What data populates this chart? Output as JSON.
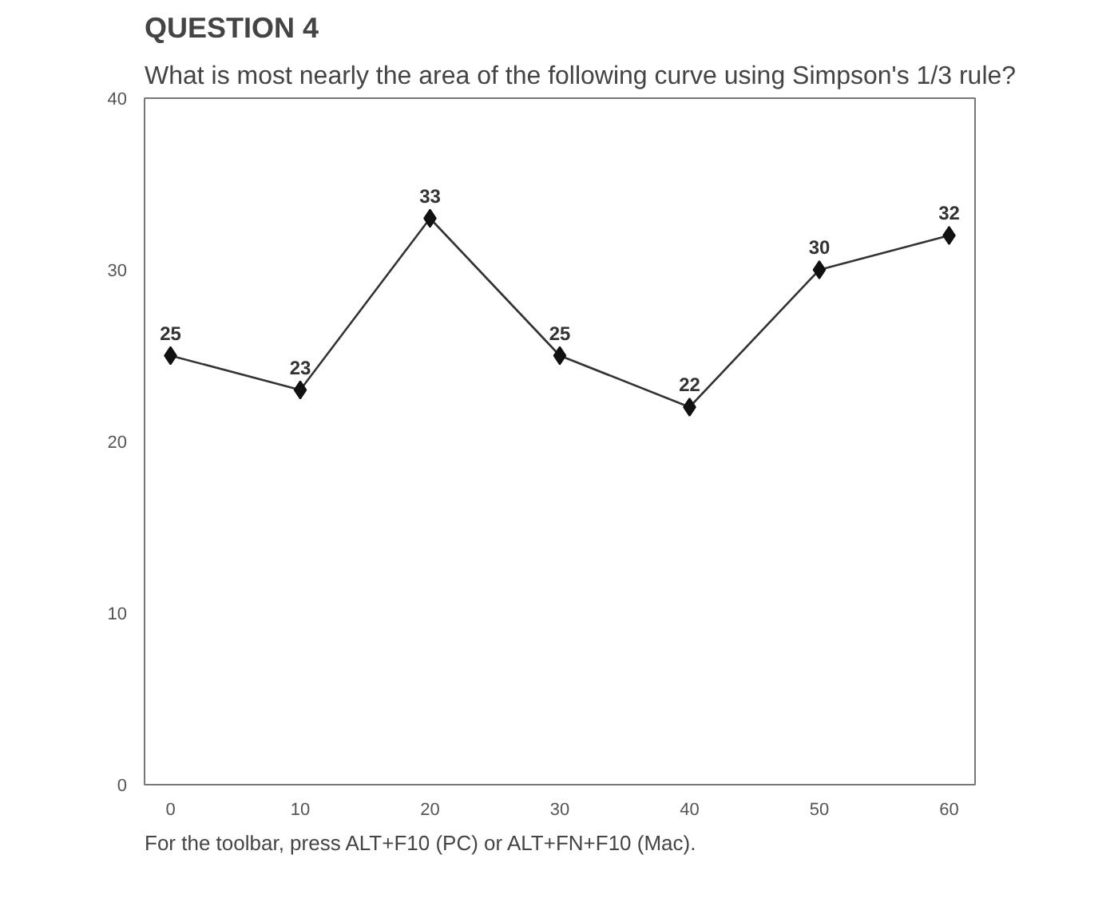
{
  "chart_data": {
    "type": "line",
    "title": "QUESTION 4",
    "subtitle": "What is most nearly the area of the following curve using Simpson's 1/3 rule?",
    "x": [
      0,
      10,
      20,
      30,
      40,
      50,
      60
    ],
    "series": [
      {
        "color": "#333333",
        "values": [
          25,
          23,
          33,
          25,
          22,
          30,
          32
        ]
      }
    ],
    "xlim": [
      -2,
      62
    ],
    "ylim": [
      0,
      40
    ],
    "xticks": [
      0,
      10,
      20,
      30,
      40,
      50,
      60
    ],
    "yticks": [
      0,
      10,
      20,
      30,
      40
    ],
    "grid": false,
    "marker": "diamond",
    "line_style": "solid",
    "data_labels": true,
    "annotations": [
      "For the toolbar, press ALT+F10 (PC) or ALT+FN+F10 (Mac)."
    ]
  }
}
